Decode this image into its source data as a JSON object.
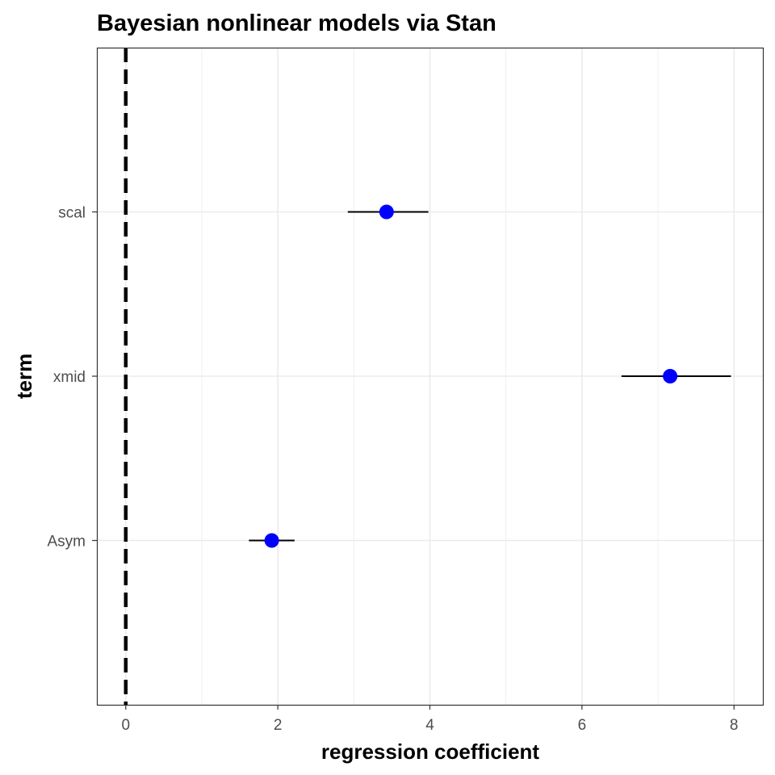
{
  "chart_data": {
    "type": "scatter",
    "title": "Bayesian nonlinear models via Stan",
    "xlabel": "regression coefficient",
    "ylabel": "term",
    "xlim": [
      -0.38,
      8.38
    ],
    "x_ticks": [
      0,
      2,
      4,
      6,
      8
    ],
    "categories": [
      "Asym",
      "xmid",
      "scal"
    ],
    "points": [
      {
        "term": "scal",
        "estimate": 3.43,
        "low": 2.92,
        "high": 3.98
      },
      {
        "term": "xmid",
        "estimate": 7.16,
        "low": 6.52,
        "high": 7.96
      },
      {
        "term": "Asym",
        "estimate": 1.92,
        "low": 1.62,
        "high": 2.22
      }
    ],
    "reference_line": {
      "x": 0,
      "style": "dashed"
    },
    "grid": true,
    "point_color": "#0000ff",
    "interval_color": "#000000"
  }
}
